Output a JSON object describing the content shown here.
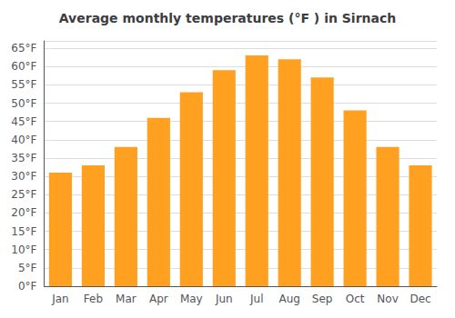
{
  "chart_data": {
    "type": "bar",
    "title": "Average monthly temperatures (°F ) in Sirnach",
    "categories": [
      "Jan",
      "Feb",
      "Mar",
      "Apr",
      "May",
      "Jun",
      "Jul",
      "Aug",
      "Sep",
      "Oct",
      "Nov",
      "Dec"
    ],
    "values": [
      31,
      33,
      38,
      46,
      53,
      59,
      63,
      62,
      57,
      48,
      38,
      33
    ],
    "color": "#FFA020",
    "ylim": [
      0,
      67
    ],
    "yticks": [
      {
        "value": 0,
        "label": "0°F"
      },
      {
        "value": 5,
        "label": "5°F"
      },
      {
        "value": 10,
        "label": "10°F"
      },
      {
        "value": 15,
        "label": "15°F"
      },
      {
        "value": 20,
        "label": "20°F"
      },
      {
        "value": 25,
        "label": "25°F"
      },
      {
        "value": 30,
        "label": "30°F"
      },
      {
        "value": 35,
        "label": "35°F"
      },
      {
        "value": 40,
        "label": "40°F"
      },
      {
        "value": 45,
        "label": "45°F"
      },
      {
        "value": 50,
        "label": "50°F"
      },
      {
        "value": 55,
        "label": "55°F"
      },
      {
        "value": 60,
        "label": "60°F"
      },
      {
        "value": 65,
        "label": "65°F"
      }
    ],
    "grid": true
  }
}
